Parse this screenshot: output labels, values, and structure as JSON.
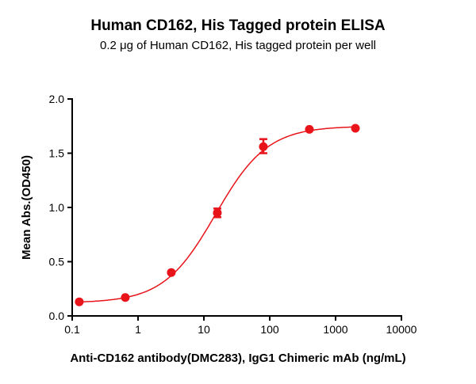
{
  "chart_data": {
    "type": "scatter",
    "title": "Human CD162, His Tagged protein ELISA",
    "subtitle": "0.2 μg of Human CD162, His tagged protein per well",
    "xlabel": "Anti-CD162 antibody(DMC283), IgG1 Chimeric mAb (ng/mL)",
    "ylabel": "Mean Abs.(OD450)",
    "xscale": "log",
    "xlim": [
      0.1,
      10000
    ],
    "ylim": [
      0,
      2.0
    ],
    "xticks": [
      "0.1",
      "1",
      "10",
      "100",
      "1000",
      "10000"
    ],
    "yticks": [
      "0.0",
      "0.5",
      "1.0",
      "1.5",
      "2.0"
    ],
    "grid": false,
    "color": "#e8141a",
    "fit": "sigmoidal curve",
    "points": [
      {
        "x": 0.128,
        "y": 0.13
      },
      {
        "x": 0.64,
        "y": 0.17
      },
      {
        "x": 3.2,
        "y": 0.4
      },
      {
        "x": 16,
        "y": 0.95,
        "err_low": 0.91,
        "err_high": 0.99
      },
      {
        "x": 80,
        "y": 1.56,
        "err_low": 1.5,
        "err_high": 1.63
      },
      {
        "x": 400,
        "y": 1.72
      },
      {
        "x": 2000,
        "y": 1.73
      }
    ]
  }
}
